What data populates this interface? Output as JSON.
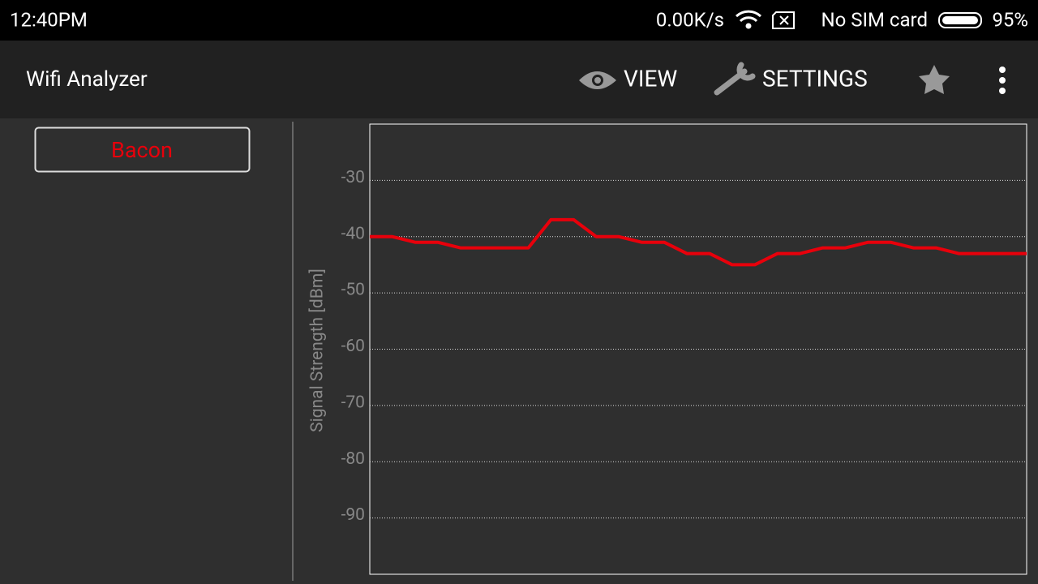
{
  "status_bar": {
    "time": "12:40PM",
    "speed": "0.00K/s",
    "sim": "No SIM card",
    "battery": "95%"
  },
  "app_bar": {
    "title": "Wifi Analyzer",
    "actions": [
      "VIEW",
      "SETTINGS"
    ]
  },
  "chart_data": {
    "type": "line",
    "y_label": "Signal Strength [dBm]",
    "series": [
      {
        "name": "Bacon",
        "color": "#e8000b",
        "values": [
          -40,
          -40,
          -41,
          -41,
          -42,
          -42,
          -42,
          -42,
          -37,
          -37,
          -40,
          -40,
          -41,
          -41,
          -43,
          -43,
          -45,
          -45,
          -43,
          -43,
          -42,
          -42,
          -41,
          -41,
          -42,
          -42,
          -43,
          -43,
          -43,
          -43
        ]
      }
    ],
    "ylim": [
      -100,
      -20
    ],
    "yticks": [
      -30,
      -40,
      -50,
      -60,
      -70,
      -80,
      -90
    ],
    "grid": true
  }
}
